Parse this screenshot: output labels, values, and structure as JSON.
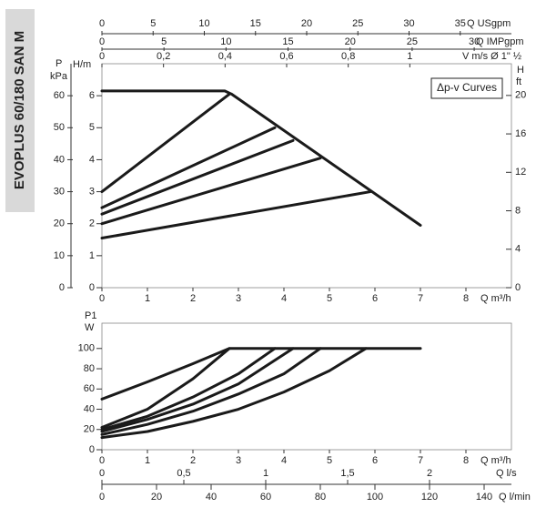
{
  "side_label": "EVOPLUS 60/180 SAN M",
  "chart_data": [
    {
      "type": "line",
      "color": "#1a1a1a",
      "annotation": "Δp-v Curves",
      "xlabel": "Q m³/h",
      "xlim": [
        0,
        9
      ],
      "xticks": [
        0,
        1,
        2,
        3,
        4,
        5,
        6,
        7,
        8
      ],
      "ylabel": "H/m",
      "ylim": [
        0,
        7
      ],
      "yticks": [
        0,
        1,
        2,
        3,
        4,
        5,
        6
      ],
      "kpa_axis": {
        "title": "P",
        "label": "kPa",
        "lim": [
          0,
          70
        ],
        "ticks": [
          0,
          10,
          20,
          30,
          40,
          50,
          60
        ]
      },
      "ft_axis": {
        "label": "H",
        "unit": "ft",
        "lim": [
          0,
          23.3
        ],
        "ticks": [
          0,
          4,
          8,
          12,
          16,
          20
        ]
      },
      "top_axes": [
        {
          "label": "Q USgpm",
          "lim": [
            0,
            40
          ],
          "ticks": [
            0,
            5,
            10,
            15,
            20,
            25,
            30,
            35
          ]
        },
        {
          "label": "Q IMPgpm",
          "lim": [
            0,
            33
          ],
          "ticks": [
            0,
            5,
            10,
            15,
            20,
            25,
            30
          ]
        },
        {
          "label": "V m/s Ø 1\" ½",
          "lim": [
            0,
            1.33
          ],
          "ticks": [
            0,
            {
              "value": 0.2,
              "label": "0,2"
            },
            {
              "value": 0.4,
              "label": "0,4"
            },
            {
              "value": 0.6,
              "label": "0,6"
            },
            {
              "value": 0.8,
              "label": "0,8"
            },
            1
          ]
        }
      ],
      "series": [
        {
          "x": [
            0,
            2.7,
            2.85,
            7
          ],
          "values": [
            6.15,
            6.15,
            6.05,
            1.95
          ]
        },
        {
          "x": [
            0,
            2.8
          ],
          "values": [
            3,
            6.05
          ]
        },
        {
          "x": [
            0,
            3.8
          ],
          "values": [
            2.5,
            5.0
          ]
        },
        {
          "x": [
            0,
            4.2
          ],
          "values": [
            2.3,
            4.6
          ]
        },
        {
          "x": [
            0,
            4.8
          ],
          "values": [
            2.0,
            4.05
          ]
        },
        {
          "x": [
            0,
            5.9
          ],
          "values": [
            1.55,
            3.0
          ]
        }
      ]
    },
    {
      "type": "line",
      "color": "#1a1a1a",
      "xlabel": "Q m³/h",
      "xlim": [
        0,
        9
      ],
      "xticks": [
        0,
        1,
        2,
        3,
        4,
        5,
        6,
        7,
        8
      ],
      "ylabel": "P1",
      "yunit": "W",
      "ylim": [
        0,
        125
      ],
      "yticks": [
        0,
        20,
        40,
        60,
        80,
        100
      ],
      "bottom_axes": [
        {
          "label": "Q l/s",
          "lim": [
            0,
            2.5
          ],
          "ticks": [
            0,
            {
              "value": 0.5,
              "label": "0,5"
            },
            1,
            {
              "value": 1.5,
              "label": "1,5"
            },
            2
          ]
        },
        {
          "label": "Q l/min",
          "lim": [
            0,
            150
          ],
          "ticks": [
            0,
            20,
            40,
            60,
            80,
            100,
            120,
            140
          ]
        }
      ],
      "series": [
        {
          "x": [
            0,
            1,
            2,
            2.8,
            7
          ],
          "values": [
            50,
            67,
            85,
            100,
            100
          ]
        },
        {
          "x": [
            0,
            1,
            2,
            2.8
          ],
          "values": [
            22,
            40,
            70,
            100
          ]
        },
        {
          "x": [
            0,
            1,
            2,
            3,
            3.8
          ],
          "values": [
            20,
            33,
            52,
            75,
            100
          ]
        },
        {
          "x": [
            0,
            1,
            2,
            3,
            4.2
          ],
          "values": [
            18,
            30,
            45,
            65,
            100
          ]
        },
        {
          "x": [
            0,
            1,
            2,
            3,
            4,
            4.8
          ],
          "values": [
            15,
            25,
            38,
            55,
            75,
            100
          ]
        },
        {
          "x": [
            0,
            1,
            2,
            3,
            4,
            5,
            5.8
          ],
          "values": [
            12,
            18,
            28,
            40,
            57,
            78,
            100
          ]
        }
      ]
    }
  ]
}
